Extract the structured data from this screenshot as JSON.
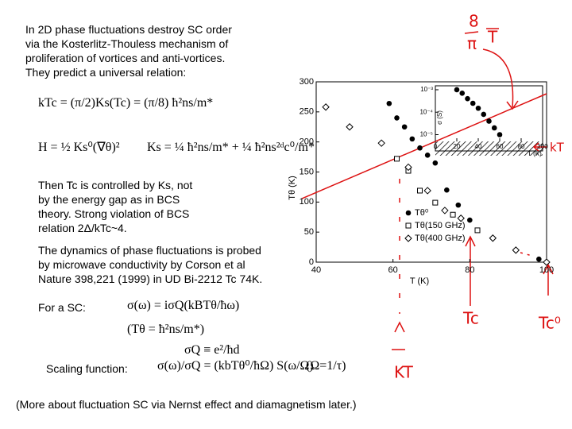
{
  "text": {
    "intro": [
      "In 2D phase fluctuations destroy SC order",
      "via the Kosterlitz-Thouless mechanism of",
      "proliferation of vortices and anti-vortices.",
      "They predict a universal relation:"
    ],
    "eq_kt": "kTc = (π/2)Ks(Tc) = (π/8) ħ²ns/m*",
    "eq_h": "H = ½ Ks⁰(∇θ)²",
    "eq_ks": "Ks = ¼ ħ²ns/m* + ¼ ħ²ns²ᵈc⁰/m*",
    "bcs": [
      "Then Tc is controlled by Ks, not",
      "by the energy gap as in BCS",
      "theory. Strong violation of BCS",
      "relation 2Δ/kTc~4."
    ],
    "dynamics": [
      "The dynamics of phase fluctuations is probed",
      "by microwave conductivity by Corson et al",
      "Nature 398,221 (1999) in UD Bi-2212 Tc 74K."
    ],
    "for_sc": "For a SC:",
    "eq_sigma": "σ(ω) = iσQ(kBTθ/ħω)",
    "eq_ttheta": "(Tθ = ħ²ns/m*)",
    "eq_sigmaq": "σQ ≡ e²/ħd",
    "scaling": "Scaling function:",
    "eq_scaling": "σ(ω)/σQ = (kbTθ⁰/ħΩ) S(ω/Ω)",
    "omega": "(Ω=1/τ)",
    "footer": "(More about fluctuation SC via Nernst effect and diamagnetism later.)"
  },
  "annotations": {
    "num": "8",
    "den": "π",
    "t": "T",
    "kt_right": "kT",
    "tc": "Tc",
    "tc0": "Tc⁰",
    "kt_low": "KT"
  },
  "chart_data": [
    {
      "type": "scatter",
      "xlabel": "T (K)",
      "ylabel": "Tθ (K)",
      "xlim": [
        40,
        100
      ],
      "xticks": [
        40,
        60,
        80,
        100
      ],
      "ylim": [
        0,
        300
      ],
      "yticks": [
        0,
        50,
        100,
        150,
        200,
        250,
        300
      ],
      "series": [
        {
          "name": "Tθ⁰",
          "color": "#000000",
          "marker": "circle-filled",
          "x": [
            59,
            61,
            63,
            65,
            67,
            69,
            71,
            74,
            77,
            80,
            86,
            92,
            98
          ],
          "values": [
            264,
            240,
            225,
            205,
            190,
            178,
            165,
            120,
            95,
            70,
            40,
            20,
            5
          ]
        },
        {
          "name": "Tθ(150 GHz)",
          "color": "#000000",
          "marker": "square",
          "x": [
            61,
            64,
            67,
            71,
            75.6,
            82
          ],
          "values": [
            172,
            152,
            119,
            99,
            79,
            53
          ]
        },
        {
          "name": "Tθ(400 GHz)",
          "color": "#000000",
          "marker": "diamond",
          "x": [
            42.5,
            48.7,
            57,
            64,
            69,
            73.5,
            77.7,
            86,
            92,
            100
          ],
          "values": [
            258,
            225,
            198,
            158,
            119,
            86,
            73,
            40,
            20,
            0
          ]
        }
      ]
    },
    {
      "type": "scatter",
      "xlabel": "T (K)",
      "ylabel": "σ (S)",
      "ylog": true,
      "xlim": [
        0,
        100
      ],
      "xticks": [
        0,
        20,
        40,
        60,
        80,
        100
      ],
      "ylim": [
        5e-06,
        0.0015
      ],
      "yticks": [
        {
          "value": 1e-05,
          "label": "10⁻⁵"
        },
        {
          "value": 0.0001,
          "label": "10⁻⁴"
        },
        {
          "value": 0.001,
          "label": "10⁻³"
        }
      ],
      "series": [
        {
          "color": "#000000",
          "marker": "circle-filled",
          "x": [
            20,
            25,
            30,
            35,
            40,
            45,
            50,
            55,
            60
          ],
          "values": [
            0.001,
            0.0007,
            0.0004,
            0.00025,
            0.00015,
            8e-05,
            4e-05,
            2e-05,
            1e-05
          ]
        }
      ]
    }
  ]
}
